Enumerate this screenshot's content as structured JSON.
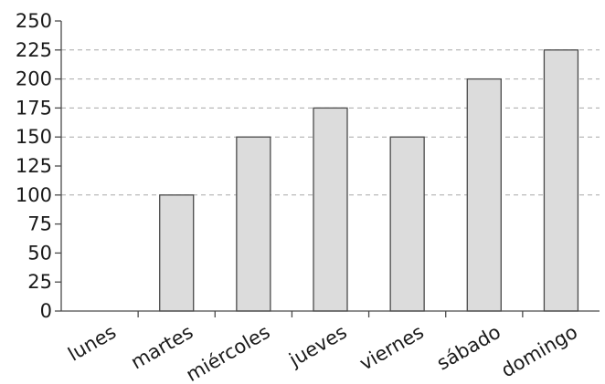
{
  "chart_data": {
    "type": "bar",
    "categories": [
      "lunes",
      "martes",
      "miércoles",
      "jueves",
      "viernes",
      "sábado",
      "domingo"
    ],
    "values": [
      0,
      100,
      150,
      175,
      150,
      200,
      225
    ],
    "title": "",
    "xlabel": "",
    "ylabel": "",
    "ylim": [
      0,
      250
    ],
    "yticks": [
      0,
      25,
      50,
      75,
      100,
      125,
      150,
      175,
      200,
      225,
      250
    ],
    "grid": "dashed horizontal lines at the top of each bar",
    "legend": "none",
    "colors": {
      "bar_fill": "#dcdcdc",
      "bar_stroke": "#4a4a4a",
      "grid": "#a8a8a8",
      "text": "#1a1a1a"
    }
  }
}
